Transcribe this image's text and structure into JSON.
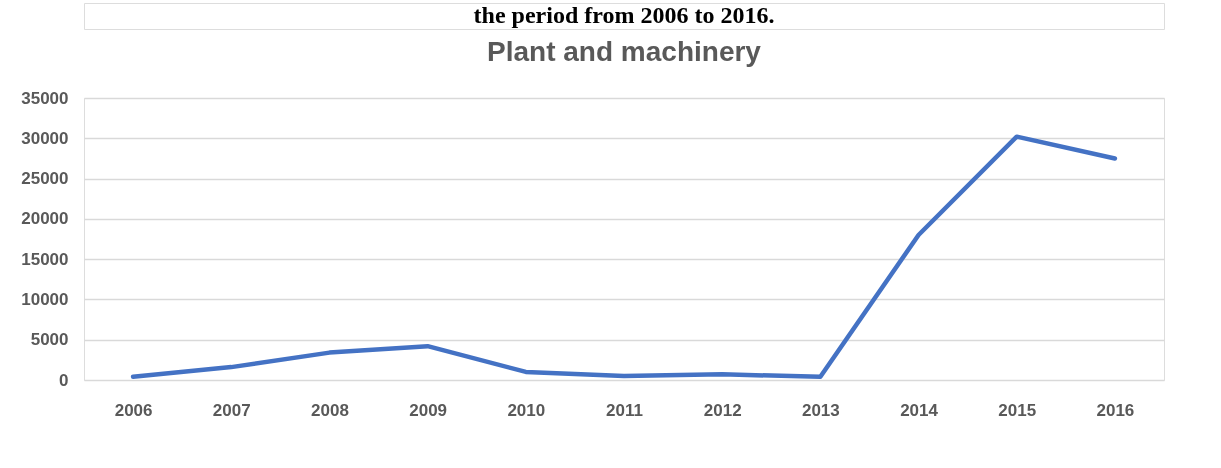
{
  "chart_data": {
    "type": "line",
    "title": "Plant and machinery",
    "annotations": [
      "the period from 2006 to 2016."
    ],
    "categories": [
      "2006",
      "2007",
      "2008",
      "2009",
      "2010",
      "2011",
      "2012",
      "2013",
      "2014",
      "2015",
      "2016"
    ],
    "series": [
      {
        "color": "#4472c4",
        "values": [
          400,
          1600,
          3400,
          4200,
          1000,
          500,
          700,
          400,
          18000,
          30200,
          27500
        ]
      }
    ],
    "ylim": [
      0,
      35000
    ],
    "yticks": [
      0,
      5000,
      10000,
      15000,
      20000,
      25000,
      30000,
      35000
    ],
    "grid": "y",
    "marker": "none",
    "line_style": "solid"
  }
}
